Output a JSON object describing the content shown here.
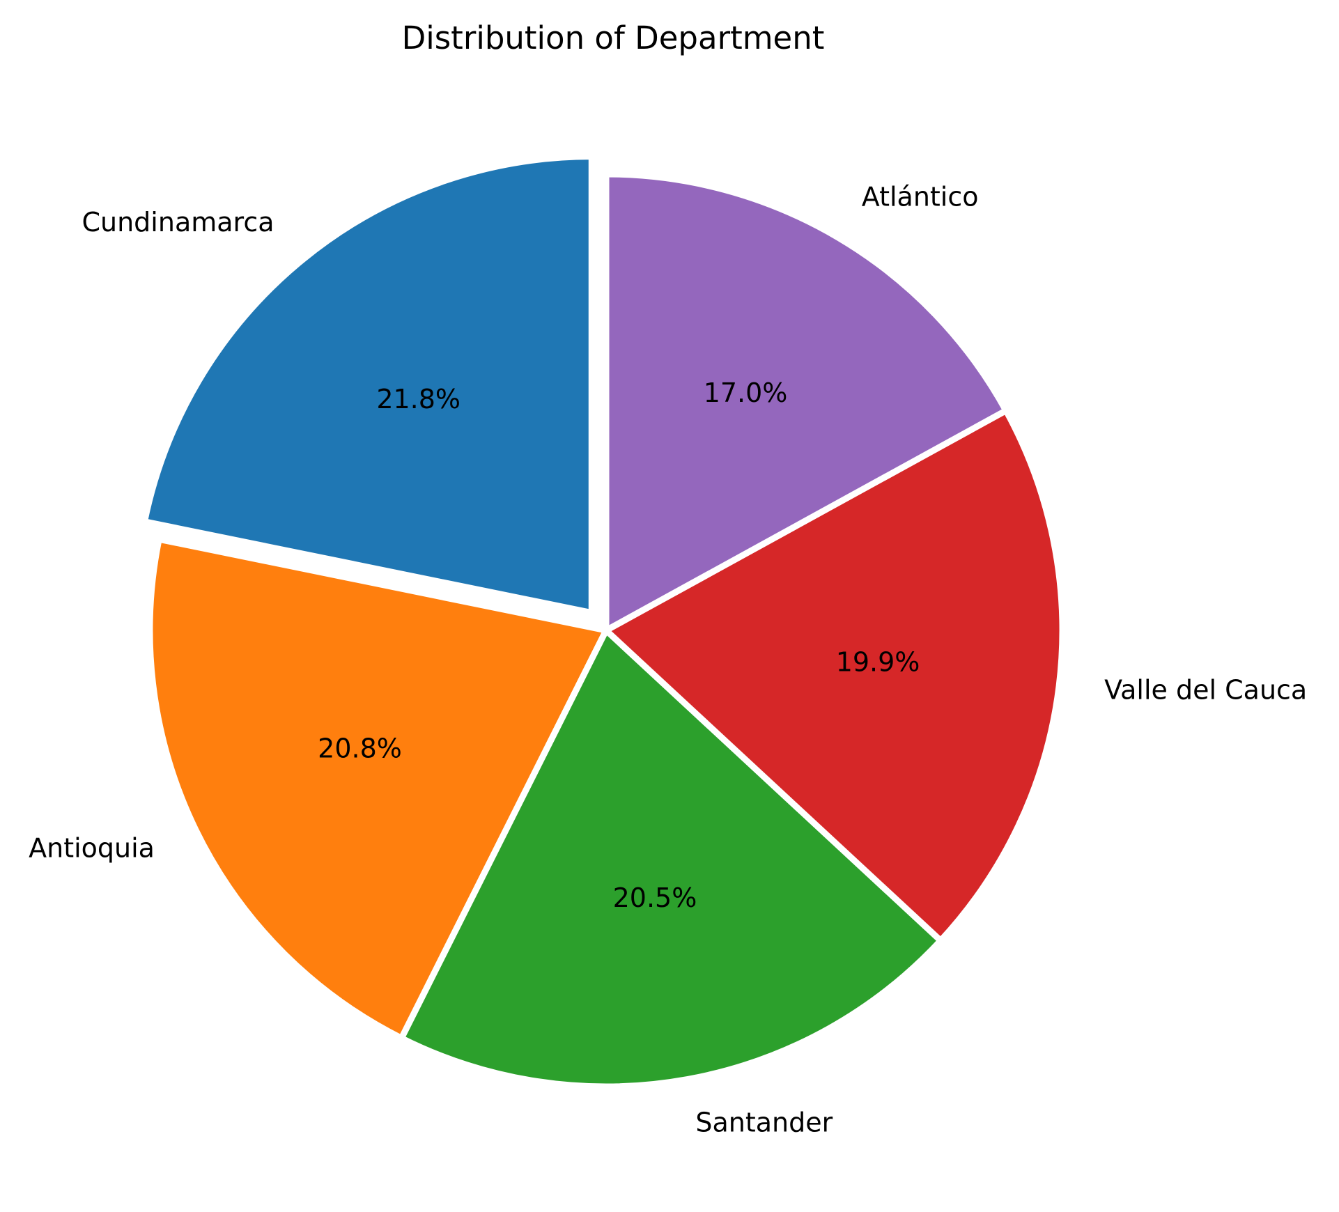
{
  "chart_data": {
    "type": "pie",
    "title": "Distribution of Department",
    "start_angle_deg": 90,
    "direction": "counterclockwise",
    "slices": [
      {
        "label": "Cundinamarca",
        "pct_label": "21.8%",
        "value": 21.8,
        "color": "#1f77b4",
        "exploded": true
      },
      {
        "label": "Antioquia",
        "pct_label": "20.8%",
        "value": 20.8,
        "color": "#ff7f0e",
        "exploded": false
      },
      {
        "label": "Santander",
        "pct_label": "20.5%",
        "value": 20.5,
        "color": "#2ca02c",
        "exploded": false
      },
      {
        "label": "Valle del Cauca",
        "pct_label": "19.9%",
        "value": 19.9,
        "color": "#d62728",
        "exploded": false
      },
      {
        "label": "Atlántico",
        "pct_label": "17.0%",
        "value": 17.0,
        "color": "#9467bd",
        "exploded": false
      }
    ]
  }
}
